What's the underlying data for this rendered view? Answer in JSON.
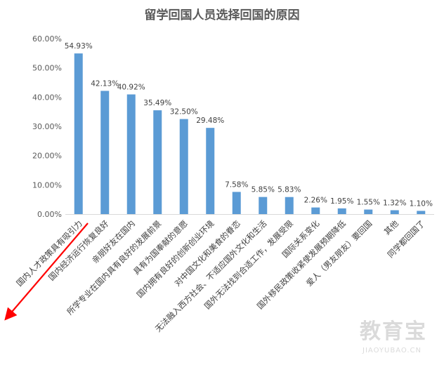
{
  "chart_data": {
    "type": "bar",
    "title": "留学回国人员选择回国的原因",
    "categories": [
      "国内人才政策具有吸引力",
      "国内经济运行恢复良好",
      "亲朋好友在国内",
      "所学专业在国内具有良好的发展前景",
      "具有为国奉献的意愿",
      "国内拥有良好的创新创业环境",
      "对中国文化和美食的眷恋",
      "无法融入西方社会、不适应国外文化和生活",
      "国外无法找到合适工作，发展受限",
      "国际关系变化",
      "国外移民政策收紧使发展预期降低",
      "爱人（男友朋友）要回国",
      "其他",
      "同学都回国了"
    ],
    "values": [
      54.93,
      42.13,
      40.92,
      35.49,
      32.5,
      29.48,
      7.58,
      5.85,
      5.83,
      2.26,
      1.95,
      1.55,
      1.32,
      1.1
    ],
    "data_labels": [
      "54.93%",
      "42.13%",
      "40.92%",
      "35.49%",
      "32.50%",
      "29.48%",
      "7.58%",
      "5.85%",
      "5.83%",
      "2.26%",
      "1.95%",
      "1.55%",
      "1.32%",
      "1.10%"
    ],
    "y_ticks": [
      "0.00%",
      "10.00%",
      "20.00%",
      "30.00%",
      "40.00%",
      "50.00%",
      "60.00%"
    ],
    "ylim": [
      0,
      60
    ],
    "xlabel": "",
    "ylabel": "",
    "grid": false,
    "legend": "none",
    "colors": {
      "bar": "#5b9bd5",
      "arrow": "#ff0000",
      "axis": "#d9d9d9"
    }
  },
  "watermark": {
    "main": "教育宝",
    "sub": "JIAOYUBAO.CN"
  }
}
